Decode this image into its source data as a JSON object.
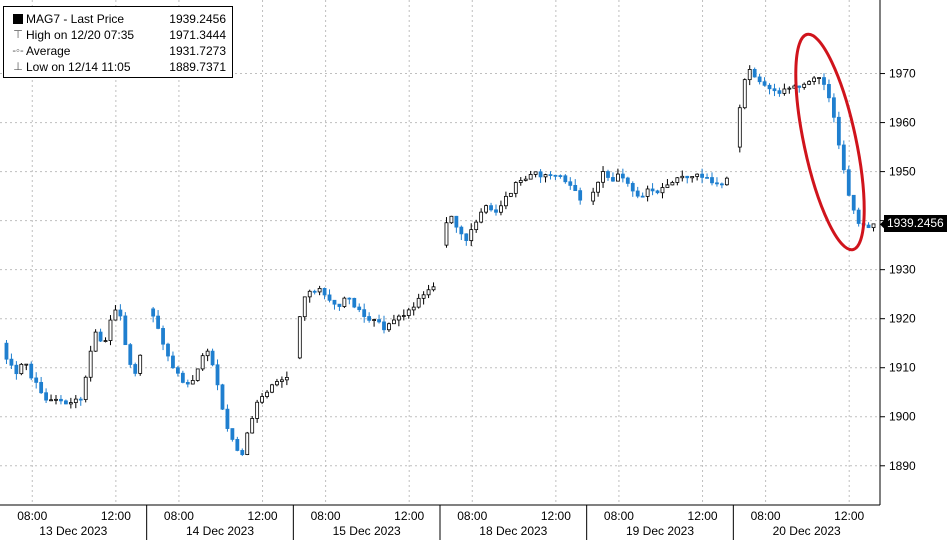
{
  "legend": {
    "title_label": "MAG7 - Last Price",
    "title_value": "1939.2456",
    "high_label": "High on 12/20 07:35",
    "high_value": "1971.3444",
    "avg_label": "Average",
    "avg_value": "1931.7273",
    "low_label": "Low on 12/14 11:05",
    "low_value": "1889.7371"
  },
  "last_price_tag": "1939.2456",
  "colors": {
    "up": "#000000",
    "down": "#1f7fcf",
    "annotation": "#d0141c",
    "grid": "#bfbfbf",
    "tag_bg": "#000000"
  },
  "chart_data": {
    "type": "candlestick",
    "title": "MAG7 - Last Price",
    "y_ticks": [
      1890,
      1900,
      1910,
      1920,
      1930,
      1940,
      1950,
      1960,
      1970
    ],
    "ylim": [
      1882,
      1985
    ],
    "grid": true,
    "legend_position": "top-left",
    "days": [
      {
        "label": "13 Dec 2023",
        "ticks": [
          "08:00",
          "12:00"
        ],
        "path": [
          1915,
          1911,
          1909,
          1912,
          1908,
          1906,
          1904,
          1903,
          1904,
          1902,
          1903,
          1904,
          1912,
          1918,
          1914,
          1920,
          1922,
          1915,
          1908,
          1912
        ]
      },
      {
        "label": "14 Dec 2023",
        "ticks": [
          "08:00",
          "12:00"
        ],
        "path": [
          1922,
          1919,
          1915,
          1910,
          1908,
          1906,
          1908,
          1912,
          1914,
          1906,
          1899,
          1895,
          1891,
          1897,
          1902,
          1905,
          1906,
          1907,
          1908
        ]
      },
      {
        "label": "15 Dec 2023",
        "ticks": [
          "08:00",
          "12:00"
        ],
        "path": [
          1912,
          1924,
          1925,
          1926,
          1925,
          1924,
          1922,
          1925,
          1922,
          1922,
          1920,
          1920,
          1918,
          1919,
          1920,
          1921,
          1922,
          1924,
          1926,
          1927
        ]
      },
      {
        "label": "18 Dec 2023",
        "ticks": [
          "08:00",
          "12:00"
        ],
        "path": [
          1935,
          1942,
          1938,
          1936,
          1938,
          1941,
          1943,
          1942,
          1944,
          1946,
          1948,
          1949,
          1950,
          1949,
          1949,
          1950,
          1948,
          1947,
          1944
        ]
      },
      {
        "label": "19 Dec 2023",
        "ticks": [
          "08:00",
          "12:00"
        ],
        "path": [
          1944,
          1947,
          1950,
          1948,
          1950,
          1948,
          1946,
          1945,
          1947,
          1946,
          1947,
          1948,
          1949,
          1948,
          1949,
          1949,
          1948,
          1947,
          1949
        ]
      },
      {
        "label": "20 Dec 2023",
        "ticks": [
          "08:00",
          "12:00"
        ],
        "path": [
          1955,
          1968,
          1971,
          1969,
          1967,
          1966,
          1966,
          1967,
          1967,
          1968,
          1969,
          1969,
          1966,
          1960,
          1952,
          1943,
          1940,
          1938,
          1939
        ]
      }
    ],
    "last_price": 1939.2456,
    "annotation": "red ellipse around the 20 Dec afternoon sell-off"
  }
}
